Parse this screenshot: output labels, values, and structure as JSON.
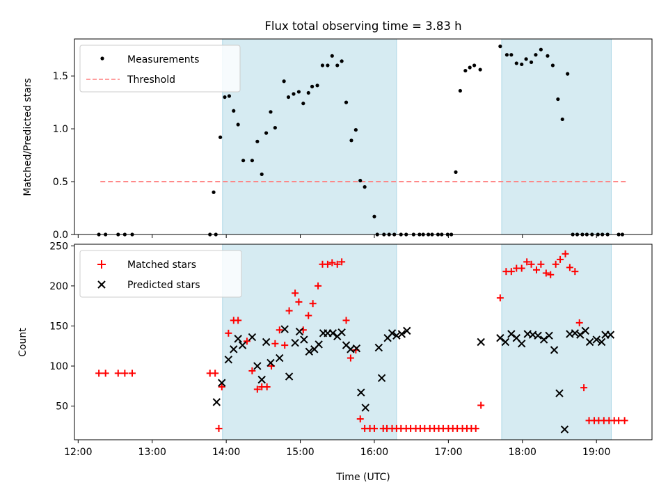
{
  "figure": {
    "title": "Flux total observing time = 3.83 h",
    "shaded_intervals": [
      [
        13.95,
        16.3
      ],
      [
        17.72,
        19.2
      ]
    ],
    "shade_color": "#add8e6",
    "x_ticks": [
      12,
      13,
      14,
      15,
      16,
      17,
      18,
      19
    ],
    "x_tick_labels": [
      "12:00",
      "13:00",
      "14:00",
      "15:00",
      "16:00",
      "17:00",
      "18:00",
      "19:00"
    ],
    "xlabel": "Time (UTC)",
    "xlim": [
      11.95,
      19.75
    ]
  },
  "chart_data": [
    {
      "type": "scatter",
      "title": "Flux total observing time = 3.83 h",
      "xlabel": "",
      "ylabel": "Matched/Predicted stars",
      "ylim": [
        0,
        1.85
      ],
      "y_ticks": [
        0,
        0.5,
        1,
        1.5
      ],
      "y_tick_labels": [
        "0.0",
        "0.5",
        "1.0",
        "1.5"
      ],
      "legend_position": "top-left",
      "legend": [
        "Measurements",
        "Threshold"
      ],
      "threshold": {
        "name": "Threshold",
        "value": 0.5,
        "x_range": [
          12.3,
          19.4
        ],
        "color": "#ff7f7f"
      },
      "series": [
        {
          "name": "Measurements",
          "color": "#000000",
          "x": [
            12.28,
            12.37,
            12.54,
            12.63,
            12.73,
            13.78,
            13.86,
            13.83,
            13.92,
            13.98,
            14.04,
            14.1,
            14.16,
            14.23,
            14.35,
            14.42,
            14.48,
            14.54,
            14.6,
            14.66,
            14.78,
            14.84,
            14.91,
            14.98,
            15.04,
            15.11,
            15.16,
            15.23,
            15.3,
            15.37,
            15.43,
            15.5,
            15.56,
            15.62,
            15.69,
            15.75,
            15.81,
            15.87,
            16.0,
            16.04,
            16.13,
            16.2,
            16.27,
            16.36,
            16.43,
            16.53,
            16.61,
            16.66,
            16.73,
            16.78,
            16.86,
            16.91,
            16.99,
            17.04,
            17.1,
            17.16,
            17.23,
            17.29,
            17.35,
            17.43,
            17.7,
            17.79,
            17.85,
            17.92,
            17.99,
            18.05,
            18.12,
            18.18,
            18.25,
            18.34,
            18.41,
            18.48,
            18.54,
            18.61,
            18.68,
            18.74,
            18.81,
            18.87,
            18.94,
            19.02,
            19.08,
            19.15,
            19.3,
            19.35
          ],
          "y": [
            0,
            0,
            0,
            0,
            0,
            0,
            0,
            0.4,
            0.92,
            1.3,
            1.31,
            1.17,
            1.04,
            0.7,
            0.7,
            0.88,
            0.57,
            0.96,
            1.16,
            1.01,
            1.45,
            1.3,
            1.33,
            1.35,
            1.24,
            1.34,
            1.4,
            1.41,
            1.6,
            1.6,
            1.69,
            1.6,
            1.64,
            1.25,
            0.89,
            0.99,
            0.51,
            0.45,
            0.17,
            0,
            0,
            0,
            0,
            0,
            0,
            0,
            0,
            0,
            0,
            0,
            0,
            0,
            0,
            0,
            0.59,
            1.36,
            1.55,
            1.58,
            1.6,
            1.56,
            1.78,
            1.7,
            1.7,
            1.62,
            1.61,
            1.66,
            1.63,
            1.7,
            1.75,
            1.69,
            1.6,
            1.28,
            1.09,
            1.52,
            0,
            0,
            0,
            0,
            0,
            0,
            0,
            0,
            0,
            0
          ]
        }
      ]
    },
    {
      "type": "scatter",
      "xlabel": "Time (UTC)",
      "ylabel": "Count",
      "ylim": [
        8,
        252
      ],
      "y_ticks": [
        50,
        100,
        150,
        200,
        250
      ],
      "y_tick_labels": [
        "50",
        "100",
        "150",
        "200",
        "250"
      ],
      "legend_position": "top-left",
      "legend": [
        "Matched stars",
        "Predicted stars"
      ],
      "series": [
        {
          "name": "Matched stars",
          "color": "#ff0000",
          "marker": "plus",
          "x": [
            12.28,
            12.37,
            12.54,
            12.63,
            12.73,
            13.78,
            13.85,
            13.9,
            13.94,
            14.03,
            14.1,
            14.16,
            14.28,
            14.35,
            14.42,
            14.48,
            14.55,
            14.61,
            14.66,
            14.72,
            14.79,
            14.85,
            14.93,
            14.98,
            15.04,
            15.11,
            15.17,
            15.24,
            15.3,
            15.37,
            15.43,
            15.5,
            15.56,
            15.62,
            15.68,
            15.75,
            15.81,
            15.87,
            15.94,
            16.0,
            16.12,
            16.17,
            16.24,
            16.3,
            16.36,
            16.43,
            16.49,
            16.56,
            16.62,
            16.68,
            16.75,
            16.81,
            16.87,
            16.93,
            17.0,
            17.06,
            17.12,
            17.19,
            17.25,
            17.31,
            17.37,
            17.44,
            17.7,
            17.78,
            17.85,
            17.92,
            17.99,
            18.06,
            18.12,
            18.19,
            18.25,
            18.32,
            18.38,
            18.45,
            18.51,
            18.58,
            18.64,
            18.71,
            18.77,
            18.83,
            18.9,
            18.97,
            19.03,
            19.1,
            19.17,
            19.24,
            19.3,
            19.38
          ],
          "y": [
            91,
            91,
            91,
            91,
            91,
            91,
            91,
            22,
            74,
            141,
            157,
            157,
            131,
            94,
            71,
            74,
            74,
            100,
            128,
            145,
            126,
            169,
            191,
            180,
            145,
            163,
            178,
            200,
            227,
            227,
            229,
            227,
            230,
            157,
            110,
            120,
            34,
            22,
            22,
            22,
            22,
            22,
            22,
            22,
            22,
            22,
            22,
            22,
            22,
            22,
            22,
            22,
            22,
            22,
            22,
            22,
            22,
            22,
            22,
            22,
            22,
            51,
            185,
            218,
            218,
            222,
            222,
            230,
            227,
            220,
            227,
            216,
            214,
            227,
            233,
            240,
            223,
            218,
            154,
            73,
            32,
            32,
            32,
            32,
            32,
            32,
            32,
            32
          ]
        },
        {
          "name": "Predicted stars",
          "color": "#000000",
          "marker": "x",
          "x": [
            13.87,
            13.94,
            14.03,
            14.1,
            14.16,
            14.22,
            14.35,
            14.42,
            14.48,
            14.54,
            14.6,
            14.72,
            14.79,
            14.85,
            14.93,
            14.99,
            15.05,
            15.12,
            15.19,
            15.25,
            15.31,
            15.37,
            15.44,
            15.5,
            15.56,
            15.62,
            15.68,
            15.76,
            15.82,
            15.88,
            16.06,
            16.1,
            16.18,
            16.24,
            16.3,
            16.37,
            16.44,
            17.44,
            17.7,
            17.77,
            17.85,
            17.92,
            17.99,
            18.07,
            18.14,
            18.21,
            18.29,
            18.36,
            18.43,
            18.5,
            18.57,
            18.64,
            18.71,
            18.78,
            18.85,
            18.91,
            19.0,
            19.07,
            19.12,
            19.19
          ],
          "y": [
            55,
            79,
            108,
            121,
            134,
            126,
            136,
            100,
            83,
            130,
            104,
            110,
            146,
            87,
            129,
            143,
            133,
            118,
            121,
            127,
            141,
            141,
            141,
            137,
            142,
            126,
            121,
            122,
            67,
            48,
            123,
            85,
            135,
            141,
            138,
            140,
            144,
            130,
            135,
            130,
            140,
            135,
            128,
            140,
            139,
            138,
            133,
            138,
            120,
            66,
            21,
            140,
            141,
            139,
            144,
            130,
            133,
            130,
            139,
            139
          ]
        }
      ]
    }
  ]
}
